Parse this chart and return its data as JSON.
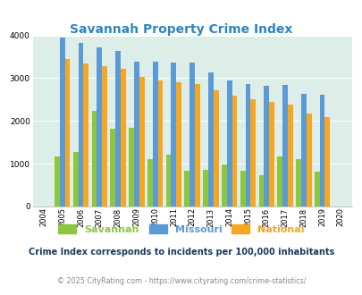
{
  "title": "Savannah Property Crime Index",
  "title_color": "#2e86c1",
  "years": [
    2004,
    2005,
    2006,
    2007,
    2008,
    2009,
    2010,
    2011,
    2012,
    2013,
    2014,
    2015,
    2016,
    2017,
    2018,
    2019,
    2020
  ],
  "savannah": [
    0,
    1180,
    1280,
    2230,
    1820,
    1840,
    1110,
    1210,
    830,
    850,
    980,
    830,
    740,
    1170,
    1110,
    820,
    0
  ],
  "missouri": [
    0,
    3960,
    3820,
    3720,
    3640,
    3390,
    3380,
    3360,
    3360,
    3130,
    2940,
    2860,
    2820,
    2840,
    2640,
    2620,
    0
  ],
  "national": [
    0,
    3440,
    3340,
    3280,
    3210,
    3040,
    2950,
    2910,
    2870,
    2720,
    2600,
    2500,
    2450,
    2390,
    2180,
    2100,
    0
  ],
  "savannah_color": "#8dc63f",
  "missouri_color": "#5b9bd5",
  "national_color": "#f5a623",
  "bg_color": "#ddeee8",
  "ylim": [
    0,
    4000
  ],
  "yticks": [
    0,
    1000,
    2000,
    3000,
    4000
  ],
  "legend_labels": [
    "Savannah",
    "Missouri",
    "National"
  ],
  "footnote1": "Crime Index corresponds to incidents per 100,000 inhabitants",
  "footnote2": "© 2025 CityRating.com - https://www.cityrating.com/crime-statistics/",
  "footnote1_color": "#1a3a5c",
  "footnote2_color": "#888888"
}
